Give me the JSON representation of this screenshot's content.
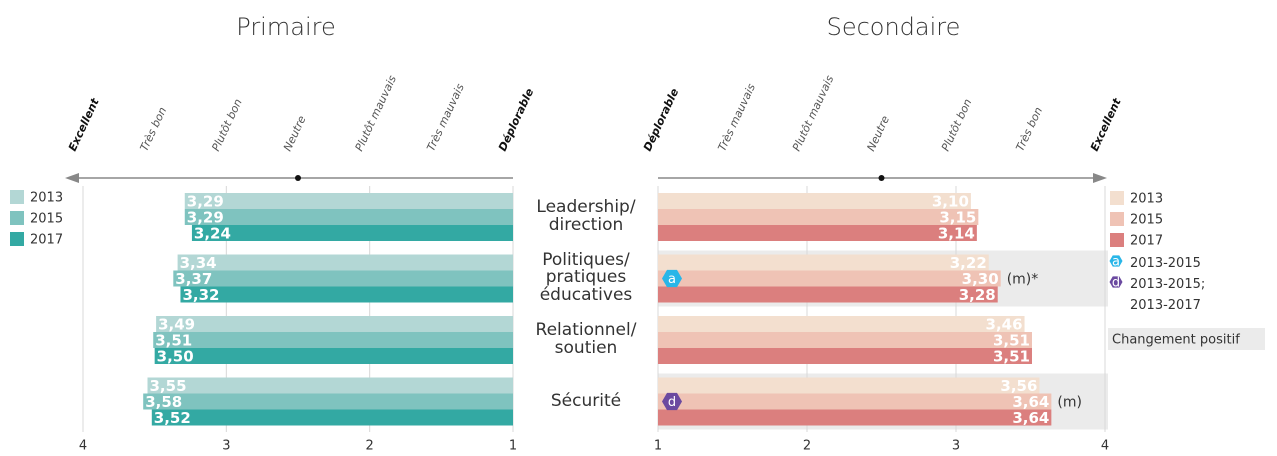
{
  "chart_data": [
    {
      "type": "bar",
      "title": "Primaire",
      "categories": [
        "Leadership/\ndirection",
        "Politiques/\npratiques\néducatives",
        "Relationnel/\nsoutien",
        "Sécurité"
      ],
      "series": [
        {
          "name": "2013",
          "color": "#b3d7d5",
          "values": [
            3.29,
            3.34,
            3.49,
            3.55
          ],
          "value_labels": [
            "3,29",
            "3,34",
            "3,49",
            "3,55"
          ]
        },
        {
          "name": "2015",
          "color": "#7fc3bf",
          "values": [
            3.29,
            3.37,
            3.51,
            3.58
          ],
          "value_labels": [
            "3,29",
            "3,37",
            "3,51",
            "3,58"
          ]
        },
        {
          "name": "2017",
          "color": "#33a9a3",
          "values": [
            3.24,
            3.32,
            3.5,
            3.52
          ],
          "value_labels": [
            "3,24",
            "3,32",
            "3,50",
            "3,52"
          ]
        }
      ],
      "xlim": [
        4,
        1
      ],
      "xticks": [
        4,
        3,
        2,
        1
      ],
      "scale_ticks": [
        {
          "value": 4,
          "label": "Excellent"
        },
        {
          "value": 3.5,
          "label": "Très bon"
        },
        {
          "value": 3,
          "label": "Plutôt bon"
        },
        {
          "value": 2.5,
          "label": "Neutre"
        },
        {
          "value": 2,
          "label": "Plutôt mauvais"
        },
        {
          "value": 1.5,
          "label": "Très mauvais"
        },
        {
          "value": 1,
          "label": "Déplorable"
        }
      ],
      "legend": "left",
      "grid": true
    },
    {
      "type": "bar",
      "title": "Secondaire",
      "series": [
        {
          "name": "2013",
          "color": "#f3dfcf",
          "values": [
            3.1,
            3.22,
            3.46,
            3.56
          ],
          "value_labels": [
            "3,10",
            "3,22",
            "3,46",
            "3,56"
          ]
        },
        {
          "name": "2015",
          "color": "#efc3b5",
          "values": [
            3.15,
            3.3,
            3.51,
            3.64
          ],
          "value_labels": [
            "3,15",
            "3,30",
            "3,51",
            "3,64"
          ]
        },
        {
          "name": "2017",
          "color": "#db7f7e",
          "values": [
            3.14,
            3.28,
            3.51,
            3.64
          ],
          "value_labels": [
            "3,14",
            "3,28",
            "3,51",
            "3,64"
          ]
        }
      ],
      "xlim": [
        1,
        4
      ],
      "xticks": [
        1,
        2,
        3,
        4
      ],
      "scale_ticks": [
        {
          "value": 1,
          "label": "Déplorable"
        },
        {
          "value": 1.5,
          "label": "Très mauvais"
        },
        {
          "value": 2,
          "label": "Plutôt mauvais"
        },
        {
          "value": 2.5,
          "label": "Neutre"
        },
        {
          "value": 3,
          "label": "Plutôt bon"
        },
        {
          "value": 3.5,
          "label": "Très bon"
        },
        {
          "value": 4,
          "label": "Excellent"
        }
      ],
      "annotations": [
        {
          "category": 1,
          "symbol": "a",
          "symbol_color": "#29b6e8",
          "series": 1,
          "note": "(m)*"
        },
        {
          "category": 3,
          "symbol": "d",
          "symbol_color": "#6b4aa0",
          "series": 1,
          "note": "(m)"
        }
      ],
      "symbol_legend": [
        {
          "symbol": "a",
          "color": "#29b6e8",
          "label": "2013-2015"
        },
        {
          "symbol": "d",
          "color": "#6b4aa0",
          "label": "2013-2015;\n2013-2017"
        }
      ],
      "highlight_label": "Changement positif",
      "legend": "right",
      "grid": true
    }
  ]
}
